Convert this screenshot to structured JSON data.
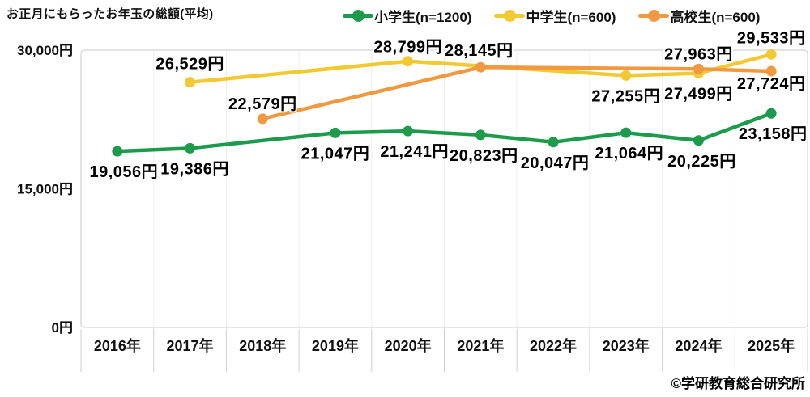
{
  "title": "お正月にもらったお年玉の総額(平均)",
  "copyright": "©学研教育総合研究所",
  "legend": {
    "position": "top",
    "items": [
      {
        "name": "elementary",
        "label": "小学生(n=1200)",
        "color": "#1d9b4d"
      },
      {
        "name": "junior-high",
        "label": "中学生(n=600)",
        "color": "#f1c933"
      },
      {
        "name": "high-school",
        "label": "高校生(n=600)",
        "color": "#ef9a41"
      }
    ]
  },
  "chart_data": {
    "type": "line",
    "title": "お正月にもらったお年玉の総額(平均)",
    "xlabel": "",
    "ylabel": "円",
    "ylim": [
      0,
      30000
    ],
    "grid": "vertical-category-separators",
    "legend_position": "top",
    "categories": [
      "2016年",
      "2017年",
      "2018年",
      "2019年",
      "2020年",
      "2021年",
      "2022年",
      "2023年",
      "2024年",
      "2025年"
    ],
    "y_ticks": [
      {
        "value": 0,
        "label": "0円"
      },
      {
        "value": 15000,
        "label": "15,000円"
      },
      {
        "value": 30000,
        "label": "30,000円"
      }
    ],
    "series": [
      {
        "name": "小学生(n=1200)",
        "color": "#1d9b4d",
        "points": [
          {
            "x": "2016年",
            "y": 19056,
            "label": "19,056円",
            "label_pos": "below",
            "label_dx": 8
          },
          {
            "x": "2017年",
            "y": 19386,
            "label": "19,386円",
            "label_pos": "below",
            "label_dx": 6
          },
          {
            "x": "2019年",
            "y": 21047,
            "label": "21,047円",
            "label_pos": "below"
          },
          {
            "x": "2020年",
            "y": 21241,
            "label": "21,241円",
            "label_pos": "below",
            "label_dx": 8
          },
          {
            "x": "2021年",
            "y": 20823,
            "label": "20,823円",
            "label_pos": "below",
            "label_dx": 4
          },
          {
            "x": "2022年",
            "y": 20047,
            "label": "20,047円",
            "label_pos": "below",
            "label_dx": 2
          },
          {
            "x": "2023年",
            "y": 21064,
            "label": "21,064円",
            "label_pos": "below",
            "label_dx": 4
          },
          {
            "x": "2024年",
            "y": 20225,
            "label": "20,225円",
            "label_pos": "below",
            "label_dx": 4
          },
          {
            "x": "2025年",
            "y": 23158,
            "label": "23,158円",
            "label_pos": "below",
            "label_dx": 2
          }
        ]
      },
      {
        "name": "中学生(n=600)",
        "color": "#f1c933",
        "points": [
          {
            "x": "2017年",
            "y": 26529,
            "label": "26,529円",
            "label_pos": "above",
            "label_dy": -16
          },
          {
            "x": "2020年",
            "y": 28799,
            "label": "28,799円",
            "label_pos": "above",
            "label_dy": -11
          },
          {
            "x": "2023年",
            "y": 27255,
            "label": "27,255円",
            "label_pos": "below"
          },
          {
            "x": "2024年",
            "y": 27499,
            "label": "27,499円",
            "label_pos": "below"
          },
          {
            "x": "2025年",
            "y": 29533,
            "label": "29,533円",
            "label_pos": "above"
          }
        ]
      },
      {
        "name": "高校生(n=600)",
        "color": "#ef9a41",
        "points": [
          {
            "x": "2018年",
            "y": 22579,
            "label": "22,579円",
            "label_pos": "above",
            "label_dy": -12
          },
          {
            "x": "2021年",
            "y": 28145,
            "label": "28,145円",
            "label_pos": "above",
            "label_dx": -2
          },
          {
            "x": "2024年",
            "y": 27963,
            "label": "27,963円",
            "label_pos": "above",
            "label_dy": -12
          },
          {
            "x": "2025年",
            "y": 27724,
            "label": "27,724円",
            "label_pos": "below",
            "label_dy": 22
          }
        ]
      }
    ]
  }
}
